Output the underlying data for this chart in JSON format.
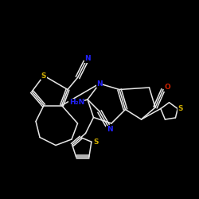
{
  "background_color": "#000000",
  "atom_color_N": "#2222ff",
  "atom_color_S": "#ccaa00",
  "atom_color_O": "#cc2200",
  "bond_color": "#e8e8e8",
  "label_N": "N",
  "label_S": "S",
  "label_O": "O",
  "label_H2N": "H₂N",
  "figsize": [
    2.5,
    2.5
  ],
  "dpi": 100
}
